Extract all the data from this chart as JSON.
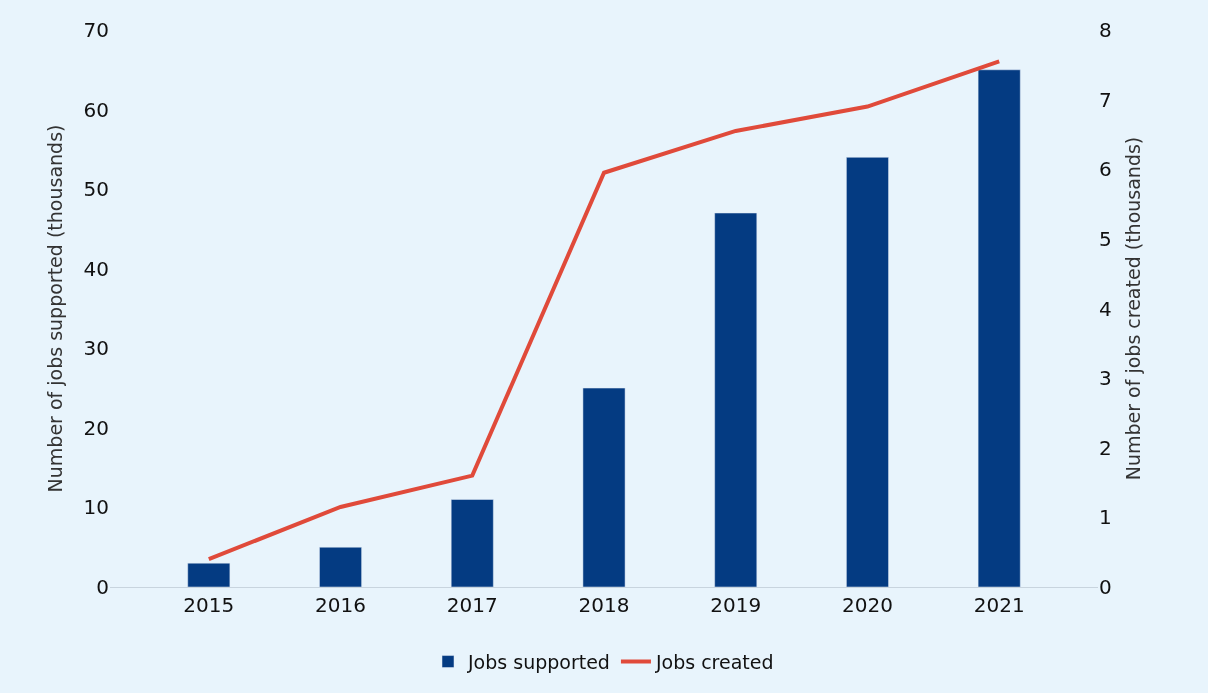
{
  "chart_data": {
    "type": "bar",
    "categories": [
      "2015",
      "2016",
      "2017",
      "2018",
      "2019",
      "2020",
      "2021"
    ],
    "series": [
      {
        "name": "Jobs supported",
        "color": "#043b82",
        "values": [
          3,
          5,
          11,
          25,
          47,
          54,
          65
        ]
      },
      {
        "name": "Jobs created",
        "color": "#e04a3a",
        "type": "line",
        "axis": "y2",
        "values": [
          0.4,
          1.15,
          1.6,
          5.95,
          6.55,
          6.9,
          7.55
        ]
      }
    ],
    "ylabel": "Number of jobs supported (thousands)",
    "y2label": "Number of jobs created (thousands)",
    "ylim": [
      0,
      70
    ],
    "yticks": [
      0,
      10,
      20,
      30,
      40,
      50,
      60,
      70
    ],
    "y2lim": [
      0,
      8
    ],
    "y2ticks": [
      0,
      1,
      2,
      3,
      4,
      5,
      6,
      7,
      8
    ],
    "grid": false,
    "legend": "bottom",
    "marker": "none",
    "line_style": "solid"
  }
}
